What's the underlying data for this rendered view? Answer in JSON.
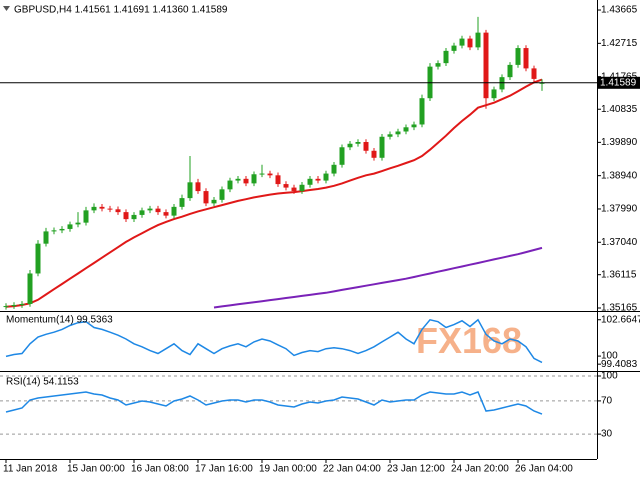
{
  "chart_data": [
    {
      "type": "candlestick",
      "title": "GBPUSD,H4  1.41561 1.41691 1.41360 1.41589",
      "categories": [
        "11 Jan 2018",
        null,
        null,
        null,
        null,
        null,
        null,
        null,
        "15 Jan 00:00",
        null,
        null,
        null,
        null,
        null,
        null,
        null,
        "16 Jan 08:00",
        null,
        null,
        null,
        null,
        null,
        null,
        null,
        "17 Jan 16:00",
        null,
        null,
        null,
        null,
        null,
        null,
        null,
        "19 Jan 00:00",
        null,
        null,
        null,
        null,
        null,
        null,
        null,
        "22 Jan 04:00",
        null,
        null,
        null,
        null,
        null,
        null,
        null,
        "23 Jan 12:00",
        null,
        null,
        null,
        null,
        null,
        null,
        null,
        "24 Jan 20:00",
        null,
        null,
        null,
        null,
        null,
        null,
        null,
        "26 Jan 04:00",
        null,
        null,
        null
      ],
      "open": [
        1.352,
        1.3522,
        1.3525,
        1.3528,
        1.3615,
        1.37,
        1.3735,
        1.3738,
        1.3742,
        1.3755,
        1.376,
        1.3795,
        1.3805,
        1.38,
        1.3798,
        1.379,
        1.377,
        1.3782,
        1.3795,
        1.38,
        1.379,
        1.378,
        1.3805,
        1.383,
        1.3875,
        1.385,
        1.3815,
        1.3825,
        1.3855,
        1.388,
        1.3885,
        1.3872,
        1.3898,
        1.39,
        1.3895,
        1.387,
        1.386,
        1.385,
        1.3868,
        1.3885,
        1.388,
        1.39,
        1.3925,
        1.3975,
        1.3985,
        1.399,
        1.3965,
        1.3945,
        1.4005,
        1.4012,
        1.402,
        1.4032,
        1.404,
        1.4115,
        1.4205,
        1.4215,
        1.425,
        1.4265,
        1.4285,
        1.426,
        1.4302,
        1.4115,
        1.414,
        1.4175,
        1.421,
        1.4258,
        1.42,
        1.41561
      ],
      "high": [
        1.353,
        1.3533,
        1.3536,
        1.3625,
        1.371,
        1.3745,
        1.3746,
        1.375,
        1.3763,
        1.379,
        1.3805,
        1.3815,
        1.3813,
        1.3808,
        1.3806,
        1.3798,
        1.379,
        1.3803,
        1.3808,
        1.3808,
        1.3798,
        1.3813,
        1.384,
        1.395,
        1.3885,
        1.3858,
        1.3833,
        1.3863,
        1.3888,
        1.3893,
        1.3893,
        1.3906,
        1.3925,
        1.3908,
        1.3903,
        1.3878,
        1.3868,
        1.3876,
        1.3893,
        1.3893,
        1.3908,
        1.3933,
        1.3983,
        1.3993,
        1.3998,
        1.3998,
        1.3973,
        1.4013,
        1.402,
        1.4028,
        1.404,
        1.4048,
        1.4125,
        1.4215,
        1.4223,
        1.4258,
        1.4273,
        1.4293,
        1.4293,
        1.4347,
        1.431,
        1.4148,
        1.4183,
        1.4218,
        1.4266,
        1.4266,
        1.4208,
        1.41691
      ],
      "low": [
        1.3512,
        1.3514,
        1.3517,
        1.352,
        1.3607,
        1.3692,
        1.3727,
        1.373,
        1.3734,
        1.3747,
        1.3752,
        1.3787,
        1.3792,
        1.379,
        1.3782,
        1.3762,
        1.3762,
        1.3774,
        1.3787,
        1.3782,
        1.3772,
        1.3772,
        1.3797,
        1.3822,
        1.3842,
        1.3807,
        1.3807,
        1.3817,
        1.3847,
        1.3872,
        1.3864,
        1.3864,
        1.389,
        1.3887,
        1.3862,
        1.3852,
        1.3842,
        1.3842,
        1.386,
        1.3872,
        1.3872,
        1.3892,
        1.3917,
        1.3967,
        1.3977,
        1.3957,
        1.3937,
        1.3937,
        1.3997,
        1.4004,
        1.4012,
        1.4024,
        1.4032,
        1.4107,
        1.4197,
        1.4207,
        1.4242,
        1.4257,
        1.4252,
        1.4252,
        1.4085,
        1.4107,
        1.4132,
        1.4167,
        1.4202,
        1.4192,
        1.4162,
        1.4136
      ],
      "close": [
        1.3522,
        1.3525,
        1.3528,
        1.3615,
        1.37,
        1.3735,
        1.3738,
        1.3742,
        1.3755,
        1.376,
        1.3795,
        1.3805,
        1.38,
        1.3798,
        1.379,
        1.377,
        1.3782,
        1.3795,
        1.38,
        1.379,
        1.378,
        1.3805,
        1.383,
        1.3875,
        1.385,
        1.3815,
        1.3825,
        1.3855,
        1.388,
        1.3885,
        1.3872,
        1.3898,
        1.39,
        1.3895,
        1.387,
        1.386,
        1.385,
        1.3868,
        1.3885,
        1.388,
        1.39,
        1.3925,
        1.3975,
        1.3985,
        1.399,
        1.3965,
        1.3945,
        1.4005,
        1.4012,
        1.402,
        1.4032,
        1.404,
        1.4115,
        1.4205,
        1.4215,
        1.425,
        1.4265,
        1.4285,
        1.426,
        1.4302,
        1.4115,
        1.414,
        1.4175,
        1.421,
        1.4258,
        1.42,
        1.417,
        1.41589
      ],
      "up_color": "#22a022",
      "down_color": "#e01818",
      "overlays": [
        {
          "color": "#e01818",
          "values": [
            1.352,
            1.3522,
            1.3525,
            1.353,
            1.354,
            1.3555,
            1.357,
            1.3585,
            1.36,
            1.3615,
            1.363,
            1.3645,
            1.366,
            1.3675,
            1.369,
            1.3705,
            1.3718,
            1.373,
            1.3742,
            1.3753,
            1.3762,
            1.377,
            1.3777,
            1.3785,
            1.3792,
            1.3798,
            1.3804,
            1.381,
            1.3816,
            1.3822,
            1.3827,
            1.3832,
            1.3836,
            1.384,
            1.3843,
            1.3845,
            1.3847,
            1.385,
            1.3853,
            1.3856,
            1.386,
            1.3865,
            1.3872,
            1.388,
            1.3888,
            1.3895,
            1.39,
            1.3907,
            1.3915,
            1.3922,
            1.393,
            1.3938,
            1.395,
            1.3968,
            1.3988,
            1.4008,
            1.403,
            1.405,
            1.4068,
            1.4088,
            1.4095,
            1.4102,
            1.4112,
            1.4122,
            1.4135,
            1.4148,
            1.416,
            1.4168
          ]
        },
        {
          "color": "#7a22b8",
          "values": [
            null,
            null,
            null,
            null,
            null,
            null,
            null,
            null,
            null,
            null,
            null,
            null,
            null,
            null,
            null,
            null,
            null,
            null,
            null,
            null,
            null,
            null,
            null,
            null,
            null,
            null,
            1.3518,
            1.3521,
            1.3524,
            1.3527,
            1.353,
            1.3533,
            1.3536,
            1.3539,
            1.3542,
            1.3545,
            1.3548,
            1.3551,
            1.3554,
            1.3557,
            1.356,
            1.3564,
            1.3568,
            1.3572,
            1.3576,
            1.358,
            1.3584,
            1.3588,
            1.3592,
            1.3596,
            1.36,
            1.3605,
            1.361,
            1.3615,
            1.362,
            1.3625,
            1.363,
            1.3635,
            1.364,
            1.3645,
            1.365,
            1.3655,
            1.366,
            1.3665,
            1.367,
            1.3676,
            1.3682,
            1.3688
          ]
        }
      ],
      "price_line": 1.41589,
      "ylim": [
        1.35108,
        1.43951
      ],
      "yticks": [
        1.43665,
        1.42715,
        1.41765,
        1.40835,
        {
          "value": 1.3989,
          "label": "1.39890"
        },
        {
          "value": 1.3894,
          "label": "1.38940"
        },
        {
          "value": 1.3799,
          "label": "1.37990"
        },
        {
          "value": 1.3704,
          "label": "1.37040"
        },
        1.36115,
        1.35165
      ]
    },
    {
      "type": "line",
      "title": "Momentum(14) 99.5363",
      "watermark": "FX168",
      "color": "#1e88e5",
      "values": [
        99.98,
        100.12,
        100.19,
        100.9,
        101.39,
        101.6,
        101.75,
        101.96,
        102.24,
        102.45,
        102.52,
        102.1,
        101.96,
        101.75,
        101.53,
        101.25,
        100.9,
        100.68,
        100.4,
        100.19,
        100.54,
        100.9,
        100.4,
        100.12,
        100.9,
        100.54,
        100.19,
        100.54,
        100.75,
        100.9,
        100.68,
        101.04,
        101.25,
        101.11,
        100.82,
        100.54,
        100.05,
        100.26,
        100.4,
        100.33,
        100.54,
        100.61,
        100.54,
        100.4,
        100.19,
        100.4,
        100.68,
        101.04,
        101.39,
        101.75,
        101.25,
        100.9,
        101.96,
        102.66,
        102.52,
        102.1,
        102.31,
        102.59,
        102.17,
        102.66,
        101.6,
        101.11,
        100.9,
        101.25,
        101.11,
        100.68,
        99.83,
        99.5363
      ],
      "ylim": [
        98.98,
        103.16
      ],
      "yticks": [
        102.6647,
        100,
        99.4083
      ]
    },
    {
      "type": "line",
      "title": "RSI(14) 54.1153",
      "color": "#1e88e5",
      "values": [
        56.6,
        59.0,
        61.4,
        71.1,
        73.5,
        74.7,
        75.9,
        77.1,
        78.3,
        79.5,
        80.7,
        78.3,
        77.1,
        73.5,
        71.1,
        65.1,
        67.5,
        69.9,
        68.7,
        66.3,
        63.9,
        69.9,
        72.3,
        75.9,
        71.1,
        65.1,
        67.5,
        69.9,
        71.1,
        71.1,
        68.7,
        71.1,
        71.1,
        68.7,
        65.1,
        63.9,
        62.7,
        66.3,
        68.7,
        67.5,
        69.9,
        71.1,
        74.7,
        73.5,
        72.3,
        68.7,
        65.1,
        71.1,
        68.7,
        69.9,
        71.1,
        71.1,
        77.1,
        80.7,
        79.5,
        78.3,
        78.3,
        80.7,
        77.1,
        80.7,
        57.8,
        59.0,
        61.4,
        63.9,
        66.3,
        63.9,
        57.8,
        54.1153
      ],
      "ylim": [
        0,
        100
      ],
      "yticks": [
        100,
        70,
        30
      ],
      "grid": true
    }
  ]
}
